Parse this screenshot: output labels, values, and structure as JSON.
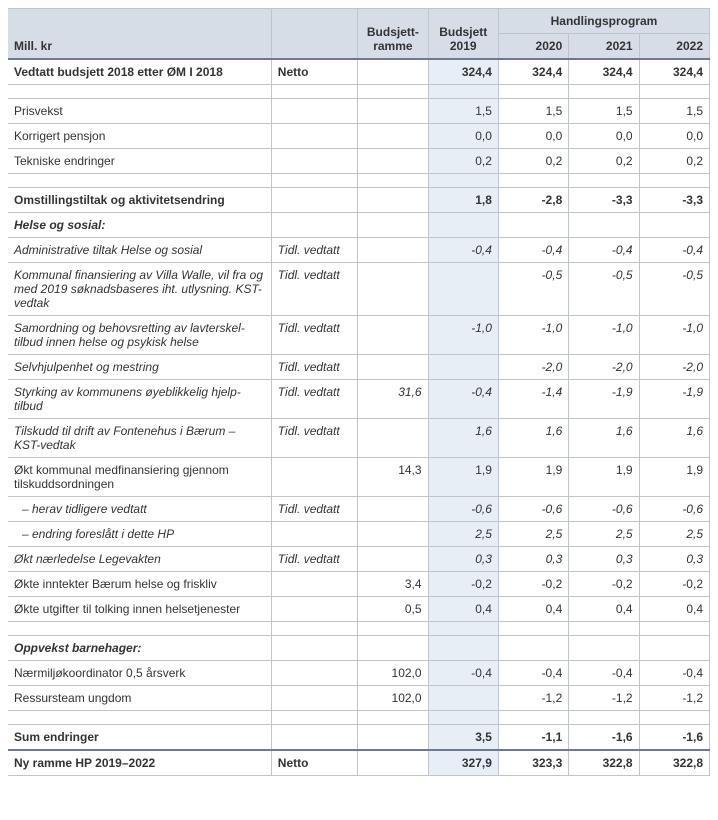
{
  "styling": {
    "header_bg": "#d6dde6",
    "highlight_bg": "#e7eef6",
    "border_color": "#bfc5cc",
    "separator_color": "#6b7a8f",
    "font_family": "Arial",
    "base_font_size": 12,
    "num_align": "right"
  },
  "headers": {
    "mill_kr": "Mill. kr",
    "budsjett_ramme": "Budsjett-ramme",
    "budsjett_2019": "Budsjett 2019",
    "handlingsprogram": "Handlingsprogram",
    "y2020": "2020",
    "y2021": "2021",
    "y2022": "2022"
  },
  "rows": [
    {
      "type": "header_bold",
      "label": "Vedtatt budsjett 2018 etter ØM I 2018",
      "note": "Netto",
      "ramme": "",
      "b2019": "324,4",
      "y2020": "324,4",
      "y2021": "324,4",
      "y2022": "324,4",
      "sep": true
    },
    {
      "type": "spacer"
    },
    {
      "type": "normal",
      "label": "Prisvekst",
      "note": "",
      "ramme": "",
      "b2019": "1,5",
      "y2020": "1,5",
      "y2021": "1,5",
      "y2022": "1,5"
    },
    {
      "type": "normal",
      "label": "Korrigert pensjon",
      "note": "",
      "ramme": "",
      "b2019": "0,0",
      "y2020": "0,0",
      "y2021": "0,0",
      "y2022": "0,0"
    },
    {
      "type": "normal",
      "label": "Tekniske endringer",
      "note": "",
      "ramme": "",
      "b2019": "0,2",
      "y2020": "0,2",
      "y2021": "0,2",
      "y2022": "0,2"
    },
    {
      "type": "spacer"
    },
    {
      "type": "bold",
      "label": "Omstillingstiltak og aktivitetsendring",
      "note": "",
      "ramme": "",
      "b2019": "1,8",
      "y2020": "-2,8",
      "y2021": "-3,3",
      "y2022": "-3,3"
    },
    {
      "type": "section_italic",
      "label": "Helse og sosial:"
    },
    {
      "type": "italic",
      "label": "Administrative tiltak Helse og sosial",
      "note": "Tidl. vedtatt",
      "ramme": "",
      "b2019": "-0,4",
      "y2020": "-0,4",
      "y2021": "-0,4",
      "y2022": "-0,4"
    },
    {
      "type": "italic",
      "label": "Kommunal finansiering av Villa Walle, vil fra og med 2019 søknadsbaseres iht. utlysning. KST-vedtak",
      "note": "Tidl. vedtatt",
      "ramme": "",
      "b2019": "",
      "y2020": "-0,5",
      "y2021": "-0,5",
      "y2022": "-0,5"
    },
    {
      "type": "italic",
      "label": "Samordning og behovsretting av lavterskel-tilbud innen helse og psykisk helse",
      "note": "Tidl. vedtatt",
      "ramme": "",
      "b2019": "-1,0",
      "y2020": "-1,0",
      "y2021": "-1,0",
      "y2022": "-1,0"
    },
    {
      "type": "italic",
      "label": "Selvhjulpenhet og mestring",
      "note": "Tidl. vedtatt",
      "ramme": "",
      "b2019": "",
      "y2020": "-2,0",
      "y2021": "-2,0",
      "y2022": "-2,0"
    },
    {
      "type": "italic",
      "label": "Styrking av kommunens øyeblikkelig hjelp-tilbud",
      "note": "Tidl. vedtatt",
      "ramme": "31,6",
      "b2019": "-0,4",
      "y2020": "-1,4",
      "y2021": "-1,9",
      "y2022": "-1,9"
    },
    {
      "type": "italic",
      "label": "Tilskudd til drift av Fontenehus i Bærum – KST-vedtak",
      "note": "Tidl. vedtatt",
      "ramme": "",
      "b2019": "1,6",
      "y2020": "1,6",
      "y2021": "1,6",
      "y2022": "1,6"
    },
    {
      "type": "normal",
      "label": "Økt kommunal medfinansiering gjennom tilskuddsordningen",
      "note": "",
      "ramme": "14,3",
      "b2019": "1,9",
      "y2020": "1,9",
      "y2021": "1,9",
      "y2022": "1,9"
    },
    {
      "type": "italic_indent",
      "label": "  – herav tidligere vedtatt",
      "note": "Tidl. vedtatt",
      "ramme": "",
      "b2019": "-0,6",
      "y2020": "-0,6",
      "y2021": "-0,6",
      "y2022": "-0,6"
    },
    {
      "type": "italic_indent",
      "label": "  – endring foreslått i dette HP",
      "note": "",
      "ramme": "",
      "b2019": "2,5",
      "y2020": "2,5",
      "y2021": "2,5",
      "y2022": "2,5"
    },
    {
      "type": "italic",
      "label": "Økt nærledelse Legevakten",
      "note": "Tidl. vedtatt",
      "ramme": "",
      "b2019": "0,3",
      "y2020": "0,3",
      "y2021": "0,3",
      "y2022": "0,3"
    },
    {
      "type": "normal",
      "label": "Økte inntekter Bærum helse og friskliv",
      "note": "",
      "ramme": "3,4",
      "b2019": "-0,2",
      "y2020": "-0,2",
      "y2021": "-0,2",
      "y2022": "-0,2"
    },
    {
      "type": "normal",
      "label": "Økte utgifter til tolking innen helsetjenester",
      "note": "",
      "ramme": "0,5",
      "b2019": "0,4",
      "y2020": "0,4",
      "y2021": "0,4",
      "y2022": "0,4"
    },
    {
      "type": "spacer"
    },
    {
      "type": "section_italic",
      "label": "Oppvekst barnehager:"
    },
    {
      "type": "normal",
      "label": "Nærmiljøkoordinator 0,5 årsverk",
      "note": "",
      "ramme": "102,0",
      "b2019": "-0,4",
      "y2020": "-0,4",
      "y2021": "-0,4",
      "y2022": "-0,4"
    },
    {
      "type": "normal",
      "label": "Ressursteam ungdom",
      "note": "",
      "ramme": "102,0",
      "b2019": "",
      "y2020": "-1,2",
      "y2021": "-1,2",
      "y2022": "-1,2"
    },
    {
      "type": "spacer"
    },
    {
      "type": "bold",
      "label": "Sum endringer",
      "note": "",
      "ramme": "",
      "b2019": "3,5",
      "y2020": "-1,1",
      "y2021": "-1,6",
      "y2022": "-1,6"
    },
    {
      "type": "header_bold",
      "label": "Ny ramme HP 2019–2022",
      "note": "Netto",
      "ramme": "",
      "b2019": "327,9",
      "y2020": "323,3",
      "y2021": "322,8",
      "y2022": "322,8",
      "sep": true
    }
  ]
}
